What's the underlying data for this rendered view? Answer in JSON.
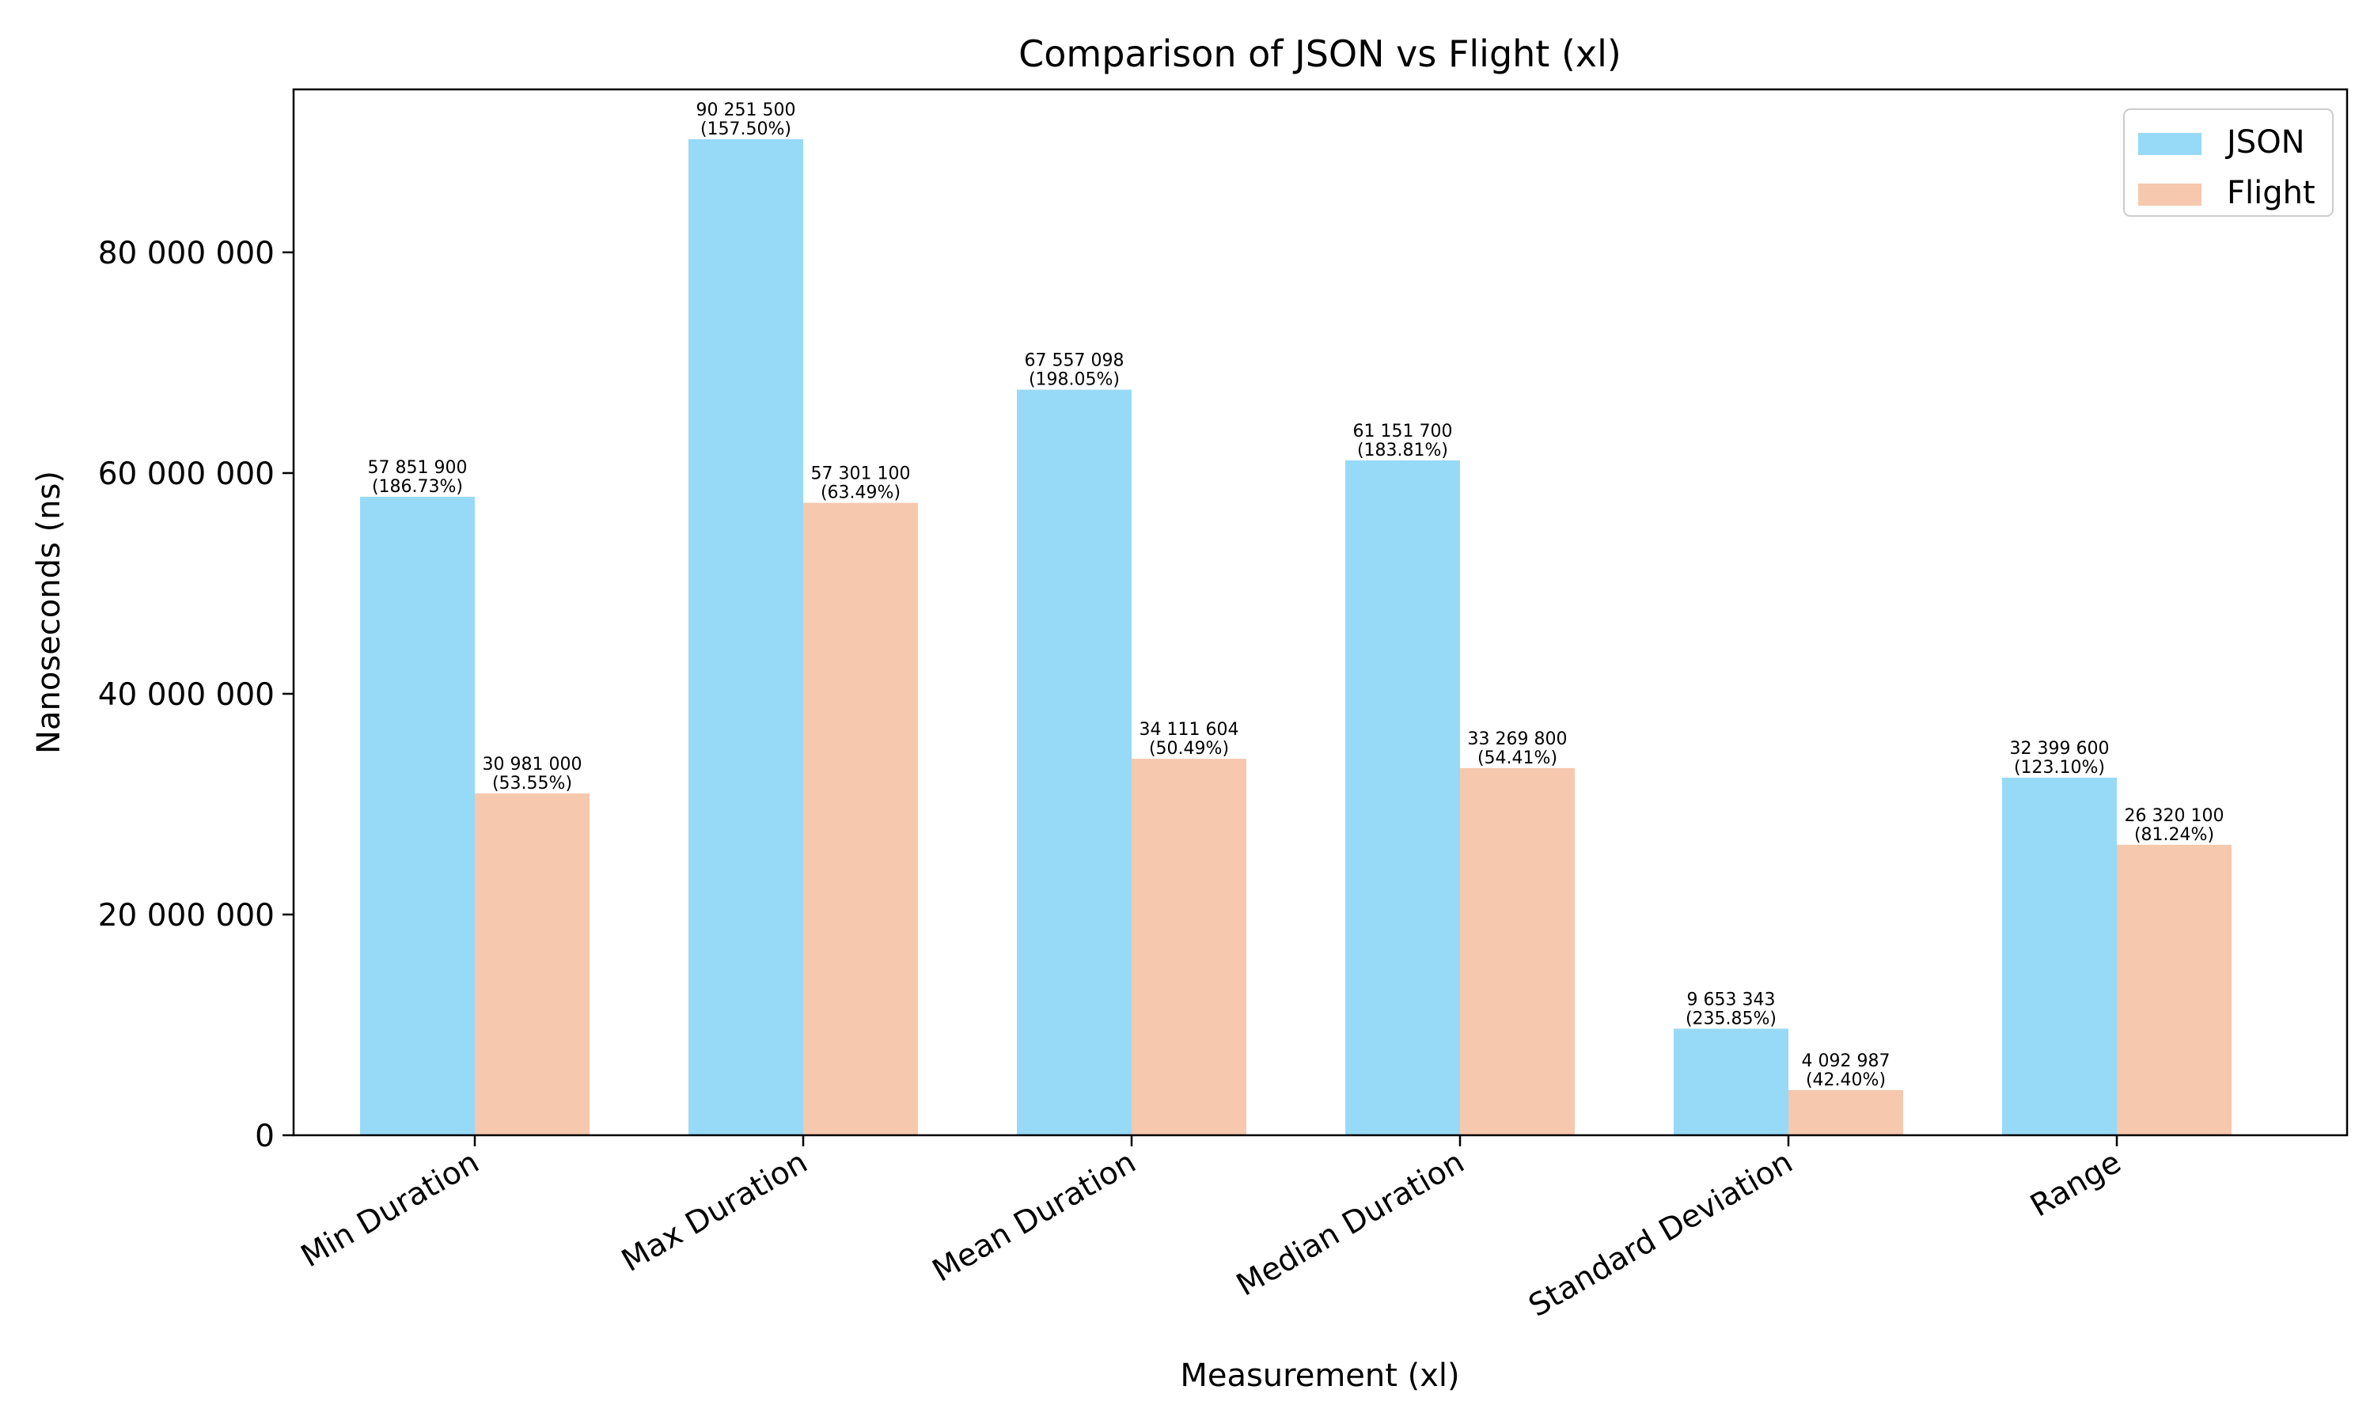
{
  "chart_data": {
    "type": "bar",
    "title": "Comparison of JSON vs Flight (xl)",
    "xlabel": "Measurement (xl)",
    "ylabel": "Nanoseconds (ns)",
    "categories": [
      "Min Duration",
      "Max Duration",
      "Mean Duration",
      "Median Duration",
      "Standard Deviation",
      "Range"
    ],
    "series": [
      {
        "name": "JSON",
        "color": "#97daf7",
        "values": [
          57851900,
          90251500,
          67557098,
          61151700,
          9653343,
          32399600
        ],
        "labels": [
          "57 851 900",
          "90 251 500",
          "67 557 098",
          "61 151 700",
          "9 653 343",
          "32 399 600"
        ],
        "percents": [
          "(186.73%)",
          "(157.50%)",
          "(198.05%)",
          "(183.81%)",
          "(235.85%)",
          "(123.10%)"
        ]
      },
      {
        "name": "Flight",
        "color": "#f6c8ae",
        "values": [
          30981000,
          57301100,
          34111604,
          33269800,
          4092987,
          26320100
        ],
        "labels": [
          "30 981 000",
          "57 301 100",
          "34 111 604",
          "33 269 800",
          "4 092 987",
          "26 320 100"
        ],
        "percents": [
          "(53.55%)",
          "(63.49%)",
          "(50.49%)",
          "(54.41%)",
          "(42.40%)",
          "(81.24%)"
        ]
      }
    ],
    "ylim": [
      0,
      94764075
    ],
    "yticks": [
      0,
      20000000,
      40000000,
      60000000,
      80000000
    ],
    "ytick_labels": [
      "0",
      "20 000 000",
      "40 000 000",
      "60 000 000",
      "80 000 000"
    ],
    "legend": "top-right",
    "grid": false
  }
}
